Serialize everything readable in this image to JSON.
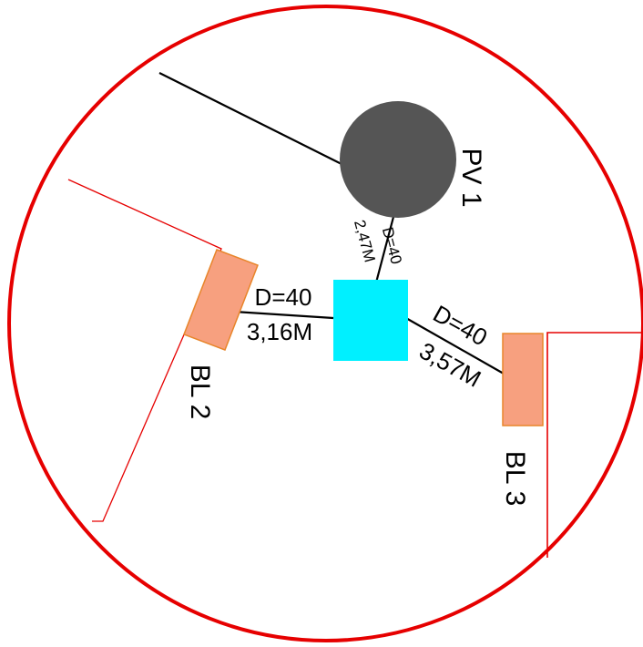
{
  "colors": {
    "boundary": "#e60000",
    "pipe": "#000000",
    "pv": "#555555",
    "hub": "#00f0ff",
    "block_fill": "#f7a07f",
    "block_stroke": "#e8852a"
  },
  "labels": {
    "pv1": "PV 1",
    "bl2": "BL 2",
    "bl3": "BL 3"
  },
  "pipes": {
    "pv": {
      "diameter": "D=40",
      "length": "2,47M"
    },
    "bl2": {
      "diameter": "D=40",
      "length": "3,16M"
    },
    "bl3": {
      "diameter": "D=40",
      "length": "3,57M"
    }
  }
}
